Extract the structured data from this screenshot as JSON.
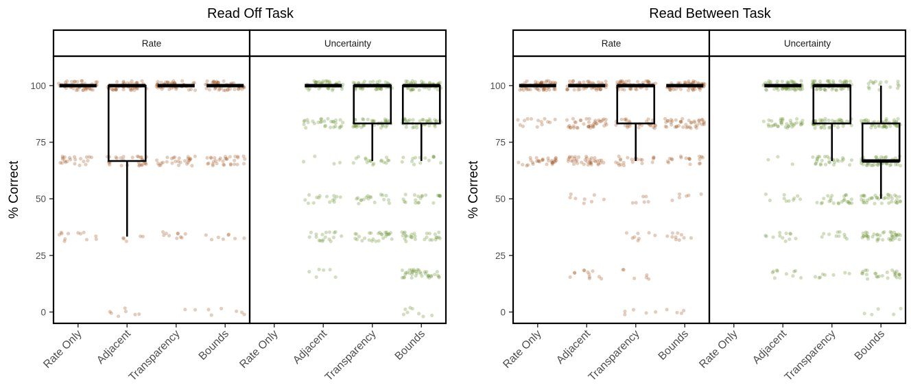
{
  "chart_data": [
    {
      "type": "box+jitter",
      "title": "Read Off Task",
      "ylabel": "% Correct",
      "ylim": [
        -5,
        113
      ],
      "yticks": [
        0,
        25,
        50,
        75,
        100
      ],
      "panels": [
        "Rate",
        "Uncertainty"
      ],
      "categories": [
        "Rate Only",
        "Adjacent",
        "Transparency",
        "Bounds"
      ],
      "colors": {
        "Rate": "#9c4a12",
        "Uncertainty": "#5f8a1e"
      },
      "groups": [
        {
          "panel": "Rate",
          "category": "Rate Only",
          "box": [
            100,
            100,
            100,
            100,
            100
          ],
          "points": [
            [
              100,
              50
            ],
            [
              66.7,
              22
            ],
            [
              33.3,
              12
            ],
            [
              16.7,
              0
            ],
            [
              0,
              0
            ]
          ]
        },
        {
          "panel": "Rate",
          "category": "Adjacent",
          "box": [
            33.3,
            66.7,
            100,
            100,
            100
          ],
          "points": [
            [
              100,
              50
            ],
            [
              66.7,
              30
            ],
            [
              33.3,
              5
            ],
            [
              16.7,
              0
            ],
            [
              0,
              7
            ]
          ]
        },
        {
          "panel": "Rate",
          "category": "Transparency",
          "box": [
            100,
            100,
            100,
            100,
            100
          ],
          "points": [
            [
              100,
              50
            ],
            [
              66.7,
              28
            ],
            [
              33.3,
              10
            ],
            [
              16.7,
              0
            ],
            [
              0,
              2
            ]
          ]
        },
        {
          "panel": "Rate",
          "category": "Bounds",
          "box": [
            100,
            100,
            100,
            100,
            100
          ],
          "points": [
            [
              100,
              50
            ],
            [
              66.7,
              32
            ],
            [
              33.3,
              8
            ],
            [
              16.7,
              0
            ],
            [
              0,
              6
            ]
          ]
        },
        {
          "panel": "Uncertainty",
          "category": "Adjacent",
          "box": [
            100,
            100,
            100,
            100,
            100
          ],
          "points": [
            [
              100,
              45
            ],
            [
              83.3,
              30
            ],
            [
              66.7,
              4
            ],
            [
              50,
              15
            ],
            [
              33.3,
              18
            ],
            [
              16.7,
              6
            ]
          ]
        },
        {
          "panel": "Uncertainty",
          "category": "Transparency",
          "box": [
            66.7,
            83.3,
            100,
            100,
            100
          ],
          "points": [
            [
              100,
              45
            ],
            [
              83.3,
              40
            ],
            [
              66.7,
              18
            ],
            [
              50,
              18
            ],
            [
              33.3,
              28
            ]
          ]
        },
        {
          "panel": "Uncertainty",
          "category": "Bounds",
          "box": [
            66.7,
            83.3,
            100,
            100,
            100
          ],
          "points": [
            [
              100,
              45
            ],
            [
              83.3,
              38
            ],
            [
              66.7,
              14
            ],
            [
              50,
              20
            ],
            [
              33.3,
              28
            ],
            [
              16.7,
              38
            ],
            [
              0,
              8
            ]
          ]
        }
      ]
    },
    {
      "type": "box+jitter",
      "title": "Read Between Task",
      "ylabel": "% Correct",
      "ylim": [
        -5,
        113
      ],
      "yticks": [
        0,
        25,
        50,
        75,
        100
      ],
      "panels": [
        "Rate",
        "Uncertainty"
      ],
      "categories": [
        "Rate Only",
        "Adjacent",
        "Transparency",
        "Bounds"
      ],
      "colors": {
        "Rate": "#9c4a12",
        "Uncertainty": "#5f8a1e"
      },
      "groups": [
        {
          "panel": "Rate",
          "category": "Rate Only",
          "box": [
            100,
            100,
            100,
            100,
            100
          ],
          "points": [
            [
              100,
              55
            ],
            [
              83.3,
              14
            ],
            [
              66.7,
              30
            ],
            [
              50,
              0
            ],
            [
              0,
              0
            ]
          ]
        },
        {
          "panel": "Rate",
          "category": "Adjacent",
          "box": [
            100,
            100,
            100,
            100,
            100
          ],
          "points": [
            [
              100,
              55
            ],
            [
              83.3,
              40
            ],
            [
              66.7,
              38
            ],
            [
              50,
              8
            ],
            [
              16.7,
              12
            ]
          ]
        },
        {
          "panel": "Rate",
          "category": "Transparency",
          "box": [
            66.7,
            83.3,
            100,
            100,
            100
          ],
          "points": [
            [
              100,
              55
            ],
            [
              83.3,
              30
            ],
            [
              66.7,
              22
            ],
            [
              50,
              6
            ],
            [
              33.3,
              8
            ],
            [
              16.7,
              6
            ],
            [
              0,
              5
            ]
          ]
        },
        {
          "panel": "Rate",
          "category": "Bounds",
          "box": [
            100,
            100,
            100,
            100,
            100
          ],
          "points": [
            [
              100,
              55
            ],
            [
              83.3,
              42
            ],
            [
              66.7,
              18
            ],
            [
              50,
              6
            ],
            [
              33.3,
              10
            ],
            [
              0,
              4
            ]
          ]
        },
        {
          "panel": "Uncertainty",
          "category": "Adjacent",
          "box": [
            100,
            100,
            100,
            100,
            100
          ],
          "points": [
            [
              100,
              55
            ],
            [
              83.3,
              36
            ],
            [
              66.7,
              3
            ],
            [
              50,
              10
            ],
            [
              33.3,
              12
            ],
            [
              16.7,
              10
            ]
          ]
        },
        {
          "panel": "Uncertainty",
          "category": "Transparency",
          "box": [
            66.7,
            83.3,
            100,
            100,
            100
          ],
          "points": [
            [
              100,
              55
            ],
            [
              83.3,
              48
            ],
            [
              66.7,
              28
            ],
            [
              50,
              24
            ],
            [
              33.3,
              10
            ],
            [
              16.7,
              8
            ]
          ]
        },
        {
          "panel": "Uncertainty",
          "category": "Bounds",
          "box": [
            50,
            66.7,
            66.7,
            83.3,
            100
          ],
          "points": [
            [
              100,
              16
            ],
            [
              83.3,
              45
            ],
            [
              66.7,
              42
            ],
            [
              50,
              38
            ],
            [
              33.3,
              40
            ],
            [
              16.7,
              26
            ],
            [
              0,
              5
            ]
          ]
        }
      ]
    }
  ]
}
